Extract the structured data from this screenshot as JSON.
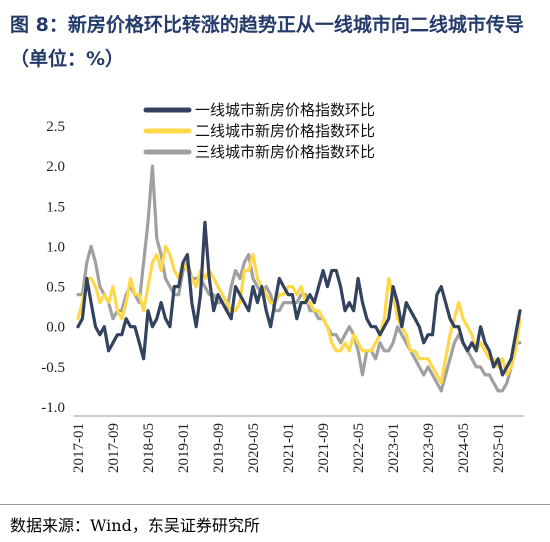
{
  "title": "图 8：新房价格环比转涨的趋势正从一线城市向二线城市传导（单位：%）",
  "source": "数据来源：Wind，东吴证券研究所",
  "chart_data": {
    "type": "line",
    "title": "",
    "xlabel": "",
    "ylabel": "",
    "ylim": [
      -1.0,
      2.5
    ],
    "yticks": [
      "2.5",
      "2.0",
      "1.5",
      "1.0",
      "0.5",
      "0.0",
      "-0.5",
      "-1.0"
    ],
    "ytick_values": [
      2.5,
      2.0,
      1.5,
      1.0,
      0.5,
      0.0,
      -0.5,
      -1.0
    ],
    "xticks": [
      "2017-01",
      "2017-09",
      "2018-05",
      "2019-01",
      "2019-09",
      "2020-05",
      "2021-01",
      "2021-09",
      "2022-05",
      "2023-01",
      "2023-09",
      "2024-05",
      "2025-01"
    ],
    "x_start": "2017-01",
    "x_end": "2025-02",
    "grid": false,
    "legend_position": "top",
    "series": [
      {
        "name": "一线城市新房价格指数环比",
        "color": "#33425e",
        "values": [
          0.0,
          0.1,
          0.6,
          0.3,
          0.0,
          -0.1,
          0.0,
          -0.3,
          -0.2,
          -0.1,
          -0.1,
          0.1,
          0.0,
          0.0,
          -0.2,
          -0.4,
          0.2,
          0.0,
          0.1,
          0.3,
          0.1,
          0.0,
          0.5,
          0.5,
          0.8,
          0.9,
          0.3,
          0.0,
          0.4,
          1.3,
          0.6,
          0.2,
          0.4,
          0.3,
          0.2,
          0.1,
          0.5,
          0.4,
          0.3,
          0.2,
          0.5,
          0.3,
          0.5,
          0.2,
          0.0,
          0.3,
          0.6,
          0.5,
          0.4,
          0.4,
          0.1,
          0.3,
          0.3,
          0.4,
          0.3,
          0.5,
          0.7,
          0.5,
          0.7,
          0.7,
          0.5,
          0.2,
          0.3,
          0.2,
          0.6,
          0.3,
          0.1,
          0.0,
          0.0,
          -0.1,
          0.0,
          0.1,
          0.5,
          0.3,
          0.0,
          0.3,
          0.2,
          0.1,
          0.0,
          -0.2,
          -0.1,
          -0.1,
          0.4,
          0.5,
          0.3,
          0.1,
          0.0,
          0.0,
          -0.2,
          -0.3,
          -0.2,
          -0.3,
          0.0,
          -0.2,
          -0.3,
          -0.5,
          -0.4,
          -0.6,
          -0.5,
          -0.4,
          -0.1,
          0.2
        ]
      },
      {
        "name": "二线城市新房价格指数环比",
        "color": "#ffd84a",
        "values": [
          0.1,
          0.3,
          0.6,
          0.6,
          0.5,
          0.3,
          0.4,
          0.3,
          0.5,
          0.2,
          0.1,
          0.3,
          0.6,
          0.4,
          0.4,
          0.2,
          0.5,
          0.8,
          0.9,
          0.7,
          1.0,
          0.9,
          0.7,
          0.6,
          0.8,
          0.7,
          0.6,
          0.5,
          0.7,
          0.6,
          0.7,
          0.6,
          0.5,
          0.4,
          0.3,
          0.2,
          0.2,
          0.3,
          0.7,
          0.7,
          0.9,
          0.6,
          0.5,
          0.4,
          0.3,
          0.3,
          0.4,
          0.4,
          0.5,
          0.5,
          0.4,
          0.5,
          0.3,
          0.3,
          0.2,
          0.2,
          0.1,
          0.0,
          -0.2,
          -0.3,
          -0.3,
          -0.2,
          -0.3,
          -0.1,
          -0.2,
          -0.3,
          -0.3,
          -0.3,
          -0.2,
          -0.1,
          0.1,
          0.6,
          0.4,
          0.1,
          0.0,
          -0.1,
          -0.3,
          -0.3,
          -0.4,
          -0.4,
          -0.4,
          -0.5,
          -0.6,
          -0.7,
          -0.4,
          -0.1,
          0.1,
          0.3,
          0.1,
          0.0,
          -0.1,
          -0.3,
          -0.2,
          -0.3,
          -0.4,
          -0.4,
          -0.5,
          -0.4,
          -0.6,
          -0.5,
          -0.3,
          0.1
        ]
      },
      {
        "name": "三线城市新房价格指数环比",
        "color": "#a0a0a0",
        "values": [
          0.4,
          0.4,
          0.8,
          1.0,
          0.8,
          0.5,
          0.4,
          0.3,
          0.1,
          0.2,
          0.2,
          0.4,
          0.5,
          0.4,
          0.3,
          0.8,
          1.3,
          2.0,
          1.1,
          0.9,
          0.6,
          0.5,
          0.4,
          0.4,
          0.7,
          0.8,
          0.6,
          0.6,
          0.6,
          0.5,
          0.4,
          0.4,
          0.3,
          0.3,
          0.2,
          0.5,
          0.7,
          0.6,
          0.8,
          0.9,
          0.6,
          0.5,
          0.4,
          0.5,
          0.4,
          0.2,
          0.2,
          0.3,
          0.3,
          0.3,
          0.3,
          0.4,
          0.4,
          0.2,
          0.2,
          0.1,
          0.1,
          0.0,
          -0.1,
          -0.1,
          -0.2,
          -0.1,
          0.0,
          -0.1,
          -0.3,
          -0.6,
          -0.3,
          -0.3,
          -0.4,
          -0.2,
          -0.3,
          -0.3,
          -0.2,
          0.0,
          -0.1,
          -0.2,
          -0.3,
          -0.4,
          -0.5,
          -0.6,
          -0.5,
          -0.6,
          -0.7,
          -0.8,
          -0.6,
          -0.4,
          -0.2,
          -0.1,
          -0.2,
          -0.3,
          -0.4,
          -0.5,
          -0.5,
          -0.6,
          -0.6,
          -0.7,
          -0.8,
          -0.8,
          -0.7,
          -0.5,
          -0.2,
          -0.2
        ]
      }
    ]
  }
}
